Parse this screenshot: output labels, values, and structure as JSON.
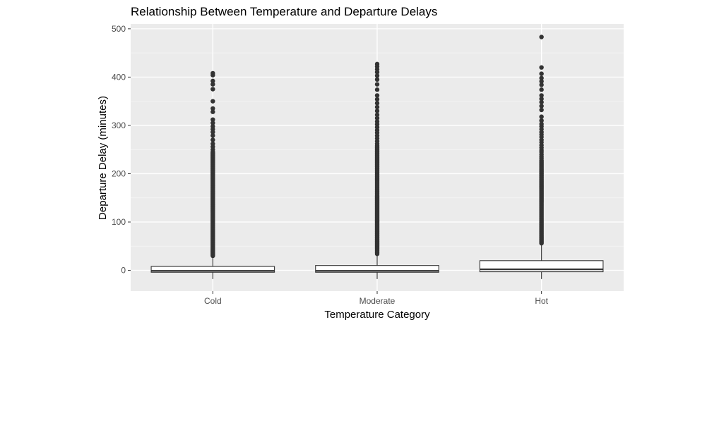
{
  "chart_data": {
    "type": "boxplot",
    "title": "Relationship Between Temperature and Departure Delays",
    "xlabel": "Temperature Category",
    "ylabel": "Departure Delay (minutes)",
    "categories": [
      "Cold",
      "Moderate",
      "Hot"
    ],
    "ylim": [
      -43,
      510
    ],
    "yticks": [
      0,
      100,
      200,
      300,
      400,
      500
    ],
    "grid": true,
    "legend": "none",
    "boxes": [
      {
        "category": "Cold",
        "whisker_low": -18,
        "q1": -4,
        "median": -1,
        "q3": 8,
        "whisker_high": 26,
        "outliers": [
          408,
          404,
          392,
          385,
          375,
          350,
          335,
          328,
          312,
          305,
          298,
          292,
          286,
          279,
          270,
          262,
          256,
          250
        ],
        "outlier_band": [
          30,
          245
        ]
      },
      {
        "category": "Moderate",
        "whisker_low": -18,
        "q1": -4,
        "median": -1,
        "q3": 10,
        "whisker_high": 30,
        "outliers": [
          427,
          422,
          416,
          410,
          403,
          395,
          385,
          374,
          362,
          354,
          346,
          338,
          330,
          322,
          315,
          308,
          302,
          296,
          290,
          285,
          279,
          273,
          267,
          262
        ],
        "outlier_band": [
          34,
          258
        ]
      },
      {
        "category": "Hot",
        "whisker_low": -18,
        "q1": -3,
        "median": 2,
        "q3": 20,
        "whisker_high": 54,
        "outliers": [
          483,
          420,
          407,
          398,
          391,
          384,
          374,
          362,
          355,
          348,
          340,
          332,
          318,
          310,
          303,
          298,
          292,
          286,
          281,
          276,
          270,
          265,
          259,
          254,
          249,
          245,
          240,
          236,
          232
        ],
        "outlier_band": [
          56,
          228
        ]
      }
    ]
  },
  "colors": {
    "panel_background": "#ebebeb",
    "grid_major": "#ffffff",
    "grid_minor": "#f5f5f5",
    "box_fill": "#ffffff",
    "box_line": "#333333",
    "outlier": "#333333",
    "axis_text": "#4d4d4d",
    "title_text": "#000000"
  }
}
